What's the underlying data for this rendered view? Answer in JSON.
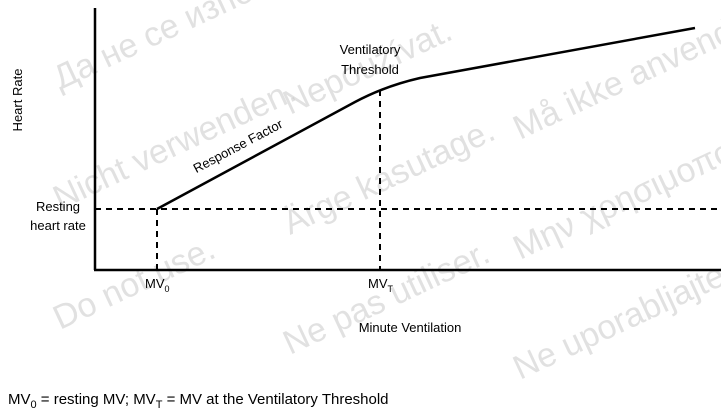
{
  "y_axis_label": "Heart Rate",
  "x_axis_label": "Minute Ventilation",
  "resting_label": [
    "Resting",
    "heart rate"
  ],
  "threshold_label": [
    "Ventilatory",
    "Threshold"
  ],
  "slope_label": "Response Factor",
  "mv0": {
    "text": "MV",
    "sub": "0"
  },
  "mvt": {
    "text": "MV",
    "sub": "T"
  },
  "caption": [
    {
      "text": "MV",
      "sub": "0"
    },
    {
      "text": " = resting MV; "
    },
    {
      "text": "MV",
      "sub": "T"
    },
    {
      "text": " = MV at the Ventilatory Threshold"
    }
  ],
  "watermark": [
    "Да не се използва.",
    "Nepoužívat.",
    "Må ikke anvendes.",
    "Nicht verwenden.",
    "Ärge kasutage.",
    "Μην χρησιμοποιείτε.",
    "Do not use.",
    "Ne pas utiliser.",
    "Ne uporabljajte."
  ]
}
